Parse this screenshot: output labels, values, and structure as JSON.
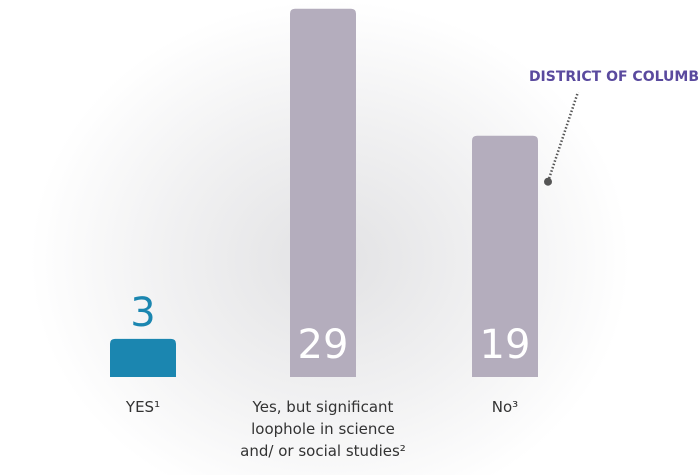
{
  "chart_data": {
    "type": "bar",
    "categories": [
      "YES¹",
      "Yes, but significant loophole in science and/ or social studies²",
      "No³"
    ],
    "values": [
      3,
      29,
      19
    ],
    "colors": [
      "#1b86b0",
      "#b4adbd",
      "#b4adbd"
    ],
    "label_colors": [
      "#1b86b0",
      "#ffffff",
      "#ffffff"
    ],
    "annotation": {
      "text": "DISTRICT OF COLUMBIA",
      "category": 2,
      "color": "#5a4a9e"
    }
  }
}
